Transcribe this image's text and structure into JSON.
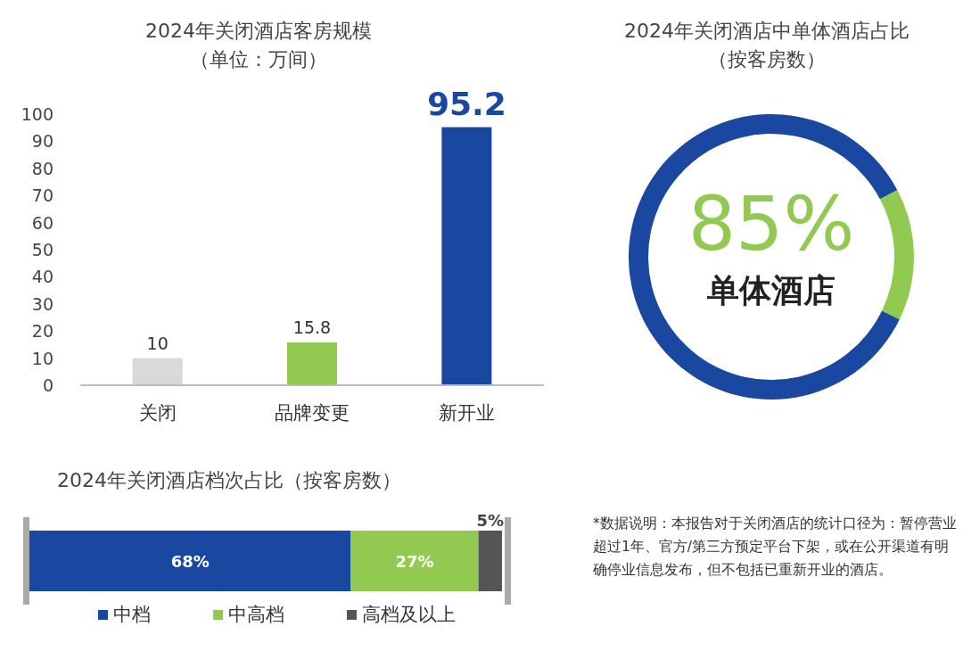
{
  "chart_data": [
    {
      "type": "bar",
      "title": "2024年关闭酒店客房规模",
      "subtitle": "（单位：万间）",
      "categories": [
        "关闭",
        "品牌变更",
        "新开业"
      ],
      "values": [
        10,
        15.8,
        95.2
      ],
      "colors": [
        "#d9d9d9",
        "#92c950",
        "#1a47a0"
      ],
      "ylim": [
        0,
        100
      ],
      "yticks": [
        0,
        10,
        20,
        30,
        40,
        50,
        60,
        70,
        80,
        90,
        100
      ],
      "data_labels": true,
      "grid": false
    },
    {
      "type": "donut",
      "title": "2024年关闭酒店中单体酒店占比",
      "subtitle": "（按客房数）",
      "categories": [
        null,
        "单体酒店"
      ],
      "values": [
        15,
        85
      ],
      "colors": [
        "#92c950",
        "#1a47a0"
      ],
      "value_labels": [
        null,
        "85%"
      ]
    },
    {
      "type": "bar",
      "orientation": "horizontal",
      "stacked": true,
      "title": "2024年关闭酒店档次占比（按客房数）",
      "categories": [
        null
      ],
      "legend": "bottom",
      "series": [
        {
          "name": "中档",
          "color": "#1a47a0",
          "values": [
            68
          ],
          "value_labels": [
            "68%"
          ]
        },
        {
          "name": "中高档",
          "color": "#92c950",
          "values": [
            27
          ],
          "value_labels": [
            "27%"
          ]
        },
        {
          "name": "高档及以上",
          "color": "#555555",
          "values": [
            5
          ],
          "value_labels": [
            "5%"
          ]
        }
      ]
    },
    {
      "type": "other",
      "annotations": [
        "*数据说明：本报告对于关闭酒店的统计口径为：暂停营业超过1年、官方/第三方预定平台下架，或在公开渠道有明确停业信息发布，但不包括已重新开业的酒店。"
      ]
    }
  ]
}
